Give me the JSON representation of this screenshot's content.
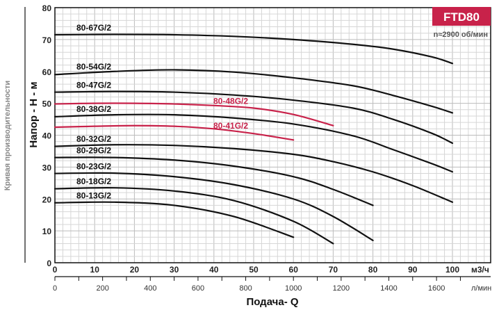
{
  "chart_data": {
    "type": "line",
    "title": "FTD80",
    "subtitle": "n≈2900 об/мин",
    "side_label": "Кривая производительности",
    "ylabel": "Напор - H - м",
    "xlabel": "Подача- Q",
    "x_unit": "м3/ч",
    "x2_unit": "л/мин",
    "xlim": [
      0,
      110
    ],
    "ylim": [
      0,
      80
    ],
    "x_ticks": [
      0,
      10,
      20,
      30,
      40,
      50,
      60,
      70,
      80,
      90,
      100
    ],
    "y_ticks": [
      0,
      10,
      20,
      30,
      40,
      50,
      60,
      70,
      80
    ],
    "x2_ticks": [
      0,
      200,
      400,
      600,
      800,
      1000,
      1200,
      1400,
      1600
    ],
    "grid": true,
    "accent_color": "#c8224a",
    "series": [
      {
        "name": "80-67G/2",
        "color": "#111111",
        "x": [
          0,
          15,
          30,
          45,
          60,
          75,
          85,
          95,
          100
        ],
        "y": [
          71.5,
          71.6,
          71.5,
          71,
          70,
          68.5,
          67,
          64.5,
          62.5
        ]
      },
      {
        "name": "80-54G/2",
        "color": "#111111",
        "x": [
          0,
          15,
          30,
          45,
          60,
          75,
          85,
          95,
          100
        ],
        "y": [
          59,
          60,
          60.5,
          59.8,
          58,
          55.5,
          52.5,
          49,
          47
        ]
      },
      {
        "name": "80-47G/2",
        "color": "#111111",
        "x": [
          0,
          15,
          30,
          45,
          60,
          75,
          85,
          95,
          100
        ],
        "y": [
          53.5,
          53.7,
          53.5,
          52.6,
          51,
          48.5,
          45,
          40.5,
          37.5
        ]
      },
      {
        "name": "80-48G/2",
        "color": "#c8224a",
        "x": [
          0,
          10,
          20,
          30,
          40,
          50,
          60,
          70
        ],
        "y": [
          49.8,
          50,
          50,
          49.8,
          49.3,
          48.5,
          46.5,
          43
        ]
      },
      {
        "name": "80-38G/2",
        "color": "#111111",
        "x": [
          0,
          15,
          30,
          45,
          60,
          75,
          85,
          95,
          100
        ],
        "y": [
          45.8,
          46.4,
          46.4,
          45.4,
          43.5,
          39.8,
          35.5,
          31,
          28.5
        ]
      },
      {
        "name": "80-41G/2",
        "color": "#c8224a",
        "x": [
          0,
          10,
          20,
          30,
          40,
          50,
          60
        ],
        "y": [
          42.5,
          42.8,
          43,
          42.8,
          42,
          40.5,
          38.5
        ]
      },
      {
        "name": "80-32G/2",
        "color": "#111111",
        "x": [
          0,
          15,
          30,
          45,
          60,
          70,
          80,
          90,
          100
        ],
        "y": [
          36.5,
          37,
          36.8,
          35.8,
          34,
          31.7,
          28.5,
          24.2,
          19
        ]
      },
      {
        "name": "80-29G/2",
        "color": "#111111",
        "x": [
          0,
          15,
          30,
          45,
          60,
          70,
          80
        ],
        "y": [
          33,
          33,
          32.2,
          30.3,
          27,
          23,
          18
        ]
      },
      {
        "name": "80-23G/2",
        "color": "#111111",
        "x": [
          0,
          15,
          30,
          45,
          60,
          70,
          80
        ],
        "y": [
          28,
          28.1,
          27,
          24.5,
          20,
          14.5,
          7
        ]
      },
      {
        "name": "80-18G/2",
        "color": "#111111",
        "x": [
          0,
          15,
          30,
          45,
          60,
          70
        ],
        "y": [
          23.2,
          23.5,
          22.5,
          19.5,
          13,
          6
        ]
      },
      {
        "name": "80-13G/2",
        "color": "#111111",
        "x": [
          0,
          15,
          30,
          45,
          60
        ],
        "y": [
          18.8,
          19,
          18,
          14.5,
          8
        ]
      }
    ]
  }
}
